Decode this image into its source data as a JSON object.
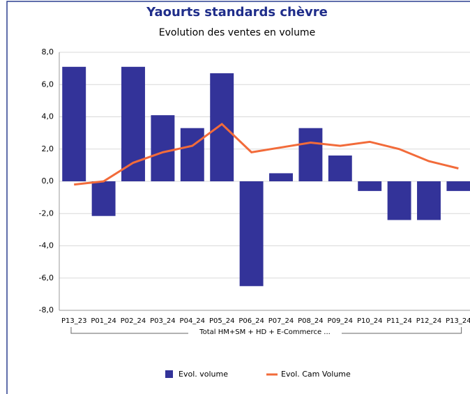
{
  "chart_data": {
    "type": "bar",
    "title": "Yaourts standards chèvre",
    "subtitle": "Evolution des ventes en volume",
    "categories": [
      "P13_23",
      "P01_24",
      "P02_24",
      "P03_24",
      "P04_24",
      "P05_24",
      "P06_24",
      "P07_24",
      "P08_24",
      "P09_24",
      "P10_24",
      "P11_24",
      "P12_24",
      "P13_24"
    ],
    "group_label": "Total HM+SM + HD + E-Commerce ...",
    "series": [
      {
        "name": "Evol. volume",
        "type": "bar",
        "color": "#333399",
        "values": [
          7.1,
          -2.15,
          7.1,
          4.1,
          3.3,
          6.7,
          -6.5,
          0.5,
          3.3,
          1.6,
          -0.6,
          -2.4,
          -2.4,
          -0.6
        ]
      },
      {
        "name": "Evol. Cam Volume",
        "type": "line",
        "color": "#f26b3a",
        "values": [
          -0.2,
          0.0,
          1.15,
          1.8,
          2.2,
          3.55,
          1.8,
          2.1,
          2.4,
          2.2,
          2.45,
          2.0,
          1.25,
          0.8
        ]
      }
    ],
    "ylim": [
      -8,
      8
    ],
    "yticks": [
      {
        "value": -8,
        "label": "-8,0"
      },
      {
        "value": -6,
        "label": "-6,0"
      },
      {
        "value": -4,
        "label": "-4,0"
      },
      {
        "value": -2,
        "label": "-2,0"
      },
      {
        "value": 0,
        "label": "0,0"
      },
      {
        "value": 2,
        "label": "2,0"
      },
      {
        "value": 4,
        "label": "4,0"
      },
      {
        "value": 6,
        "label": "6,0"
      },
      {
        "value": 8,
        "label": "8,0"
      }
    ],
    "grid": true,
    "legend": "bottom"
  }
}
